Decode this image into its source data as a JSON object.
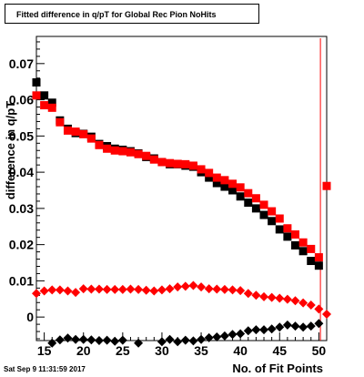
{
  "title": "Fitted difference in q/pT for Global Rec Pion NoHits",
  "datestamp": "Sat Sep  9 11:31:59 2017",
  "chart_data": {
    "type": "scatter",
    "xlabel": "No. of Fit Points",
    "ylabel": "difference in q/pT",
    "xlim": [
      14,
      51
    ],
    "ylim": [
      -0.0065,
      0.0775
    ],
    "x_ticks": [
      15,
      20,
      25,
      30,
      35,
      40,
      45,
      50
    ],
    "y_ticks": [
      0,
      0.01,
      0.02,
      0.03,
      0.04,
      0.05,
      0.06,
      0.07
    ],
    "y_tick_labels": [
      "0",
      "0.01",
      "0.02",
      "0.03",
      "0.04",
      "0.05",
      "0.06",
      "0.07"
    ],
    "colors": {
      "black": "#000000",
      "red": "#ff0000"
    },
    "vertical_line_x": 50.2,
    "series": [
      {
        "marker": "square",
        "color": "#000000",
        "points": [
          [
            14,
            0.0648
          ],
          [
            15,
            0.0612
          ],
          [
            16,
            0.0592
          ],
          [
            17,
            0.0543
          ],
          [
            18,
            0.052
          ],
          [
            19,
            0.0508
          ],
          [
            20,
            0.0506
          ],
          [
            21,
            0.0498
          ],
          [
            22,
            0.0478
          ],
          [
            23,
            0.0472
          ],
          [
            24,
            0.0465
          ],
          [
            25,
            0.0462
          ],
          [
            26,
            0.0458
          ],
          [
            27,
            0.0452
          ],
          [
            28,
            0.0442
          ],
          [
            29,
            0.0438
          ],
          [
            30,
            0.0428
          ],
          [
            31,
            0.0422
          ],
          [
            32,
            0.0422
          ],
          [
            33,
            0.0418
          ],
          [
            34,
            0.0415
          ],
          [
            35,
            0.04
          ],
          [
            36,
            0.0385
          ],
          [
            37,
            0.037
          ],
          [
            38,
            0.036
          ],
          [
            39,
            0.035
          ],
          [
            40,
            0.0333
          ],
          [
            41,
            0.0316
          ],
          [
            42,
            0.03
          ],
          [
            43,
            0.0282
          ],
          [
            44,
            0.0265
          ],
          [
            45,
            0.0242
          ],
          [
            46,
            0.0222
          ],
          [
            47,
            0.0198
          ],
          [
            48,
            0.0182
          ],
          [
            49,
            0.0155
          ],
          [
            50,
            0.0142
          ]
        ]
      },
      {
        "marker": "square",
        "color": "#ff0000",
        "points": [
          [
            14,
            0.0612
          ],
          [
            15,
            0.0585
          ],
          [
            16,
            0.0578
          ],
          [
            17,
            0.0538
          ],
          [
            18,
            0.0515
          ],
          [
            19,
            0.0512
          ],
          [
            20,
            0.0505
          ],
          [
            21,
            0.0493
          ],
          [
            22,
            0.0475
          ],
          [
            23,
            0.0465
          ],
          [
            24,
            0.046
          ],
          [
            25,
            0.0458
          ],
          [
            26,
            0.0455
          ],
          [
            27,
            0.045
          ],
          [
            28,
            0.0445
          ],
          [
            29,
            0.0435
          ],
          [
            30,
            0.0428
          ],
          [
            31,
            0.0425
          ],
          [
            32,
            0.0423
          ],
          [
            33,
            0.0422
          ],
          [
            34,
            0.0418
          ],
          [
            35,
            0.0408
          ],
          [
            36,
            0.0398
          ],
          [
            37,
            0.0385
          ],
          [
            38,
            0.0378
          ],
          [
            39,
            0.0368
          ],
          [
            40,
            0.0358
          ],
          [
            41,
            0.0342
          ],
          [
            42,
            0.0328
          ],
          [
            43,
            0.031
          ],
          [
            44,
            0.0292
          ],
          [
            45,
            0.0272
          ],
          [
            46,
            0.0245
          ],
          [
            47,
            0.0228
          ],
          [
            48,
            0.0206
          ],
          [
            49,
            0.0188
          ],
          [
            50,
            0.0165
          ],
          [
            51,
            0.0362
          ]
        ]
      },
      {
        "marker": "diamond",
        "color": "#ff0000",
        "points": [
          [
            14,
            0.0065
          ],
          [
            15,
            0.0072
          ],
          [
            16,
            0.0075
          ],
          [
            17,
            0.0075
          ],
          [
            18,
            0.0072
          ],
          [
            19,
            0.0068
          ],
          [
            20,
            0.0078
          ],
          [
            21,
            0.0077
          ],
          [
            22,
            0.0077
          ],
          [
            23,
            0.0076
          ],
          [
            24,
            0.0076
          ],
          [
            25,
            0.0076
          ],
          [
            26,
            0.0077
          ],
          [
            27,
            0.0076
          ],
          [
            28,
            0.0074
          ],
          [
            29,
            0.0072
          ],
          [
            30,
            0.0075
          ],
          [
            31,
            0.0078
          ],
          [
            32,
            0.0083
          ],
          [
            33,
            0.0085
          ],
          [
            34,
            0.0087
          ],
          [
            35,
            0.0083
          ],
          [
            36,
            0.0078
          ],
          [
            37,
            0.0077
          ],
          [
            38,
            0.0076
          ],
          [
            39,
            0.0075
          ],
          [
            40,
            0.0073
          ],
          [
            41,
            0.0065
          ],
          [
            42,
            0.006
          ],
          [
            43,
            0.0056
          ],
          [
            44,
            0.0054
          ],
          [
            45,
            0.0052
          ],
          [
            46,
            0.0049
          ],
          [
            47,
            0.0045
          ],
          [
            48,
            0.0039
          ],
          [
            49,
            0.0033
          ],
          [
            50,
            0.0022
          ],
          [
            51,
            0.0008
          ]
        ]
      },
      {
        "marker": "diamond",
        "color": "#000000",
        "points": [
          [
            16,
            -0.0072
          ],
          [
            17,
            -0.0063
          ],
          [
            18,
            -0.0058
          ],
          [
            19,
            -0.0062
          ],
          [
            20,
            -0.0062
          ],
          [
            21,
            -0.0063
          ],
          [
            22,
            -0.0065
          ],
          [
            23,
            -0.0064
          ],
          [
            24,
            -0.0067
          ],
          [
            25,
            -0.0064
          ],
          [
            27,
            -0.0072
          ],
          [
            30,
            -0.0068
          ],
          [
            31,
            -0.0062
          ],
          [
            32,
            -0.0068
          ],
          [
            33,
            -0.0064
          ],
          [
            34,
            -0.0066
          ],
          [
            35,
            -0.0062
          ],
          [
            36,
            -0.0057
          ],
          [
            37,
            -0.0055
          ],
          [
            38,
            -0.0052
          ],
          [
            39,
            -0.0048
          ],
          [
            40,
            -0.0046
          ],
          [
            41,
            -0.0038
          ],
          [
            42,
            -0.0035
          ],
          [
            43,
            -0.0035
          ],
          [
            44,
            -0.0033
          ],
          [
            45,
            -0.0028
          ],
          [
            46,
            -0.0022
          ],
          [
            47,
            -0.0025
          ],
          [
            48,
            -0.0028
          ],
          [
            49,
            -0.0025
          ],
          [
            50,
            -0.0018
          ]
        ]
      }
    ]
  }
}
